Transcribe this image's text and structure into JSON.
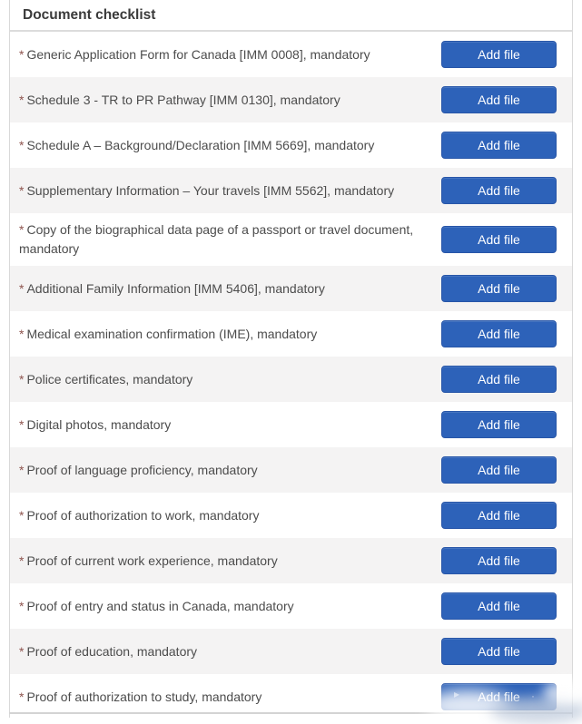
{
  "header": {
    "title": "Document checklist"
  },
  "checklist": {
    "required_marker": "*",
    "add_file_label": "Add file",
    "items": [
      "Generic Application Form for Canada [IMM 0008], mandatory",
      "Schedule 3 - TR to PR Pathway [IMM 0130], mandatory",
      "Schedule A – Background/Declaration [IMM 5669], mandatory",
      "Supplementary Information – Your travels [IMM 5562], mandatory",
      "Copy of the biographical data page of a passport or travel document, mandatory",
      "Additional Family Information [IMM 5406], mandatory",
      "Medical examination confirmation (IME), mandatory",
      "Police certificates, mandatory",
      "Digital photos, mandatory",
      "Proof of language proficiency, mandatory",
      "Proof of authorization to work, mandatory",
      "Proof of current work experience, mandatory",
      "Proof of entry and status in Canada, mandatory",
      "Proof of education, mandatory",
      "Proof of authorization to study, mandatory"
    ]
  },
  "colors": {
    "button_blue": "#2d62b9",
    "alt_row_gray": "#f4f3f3",
    "label_text": "#4c4c4c",
    "required_marker_red": "#8e544e",
    "title_text": "#3a3a3a"
  }
}
